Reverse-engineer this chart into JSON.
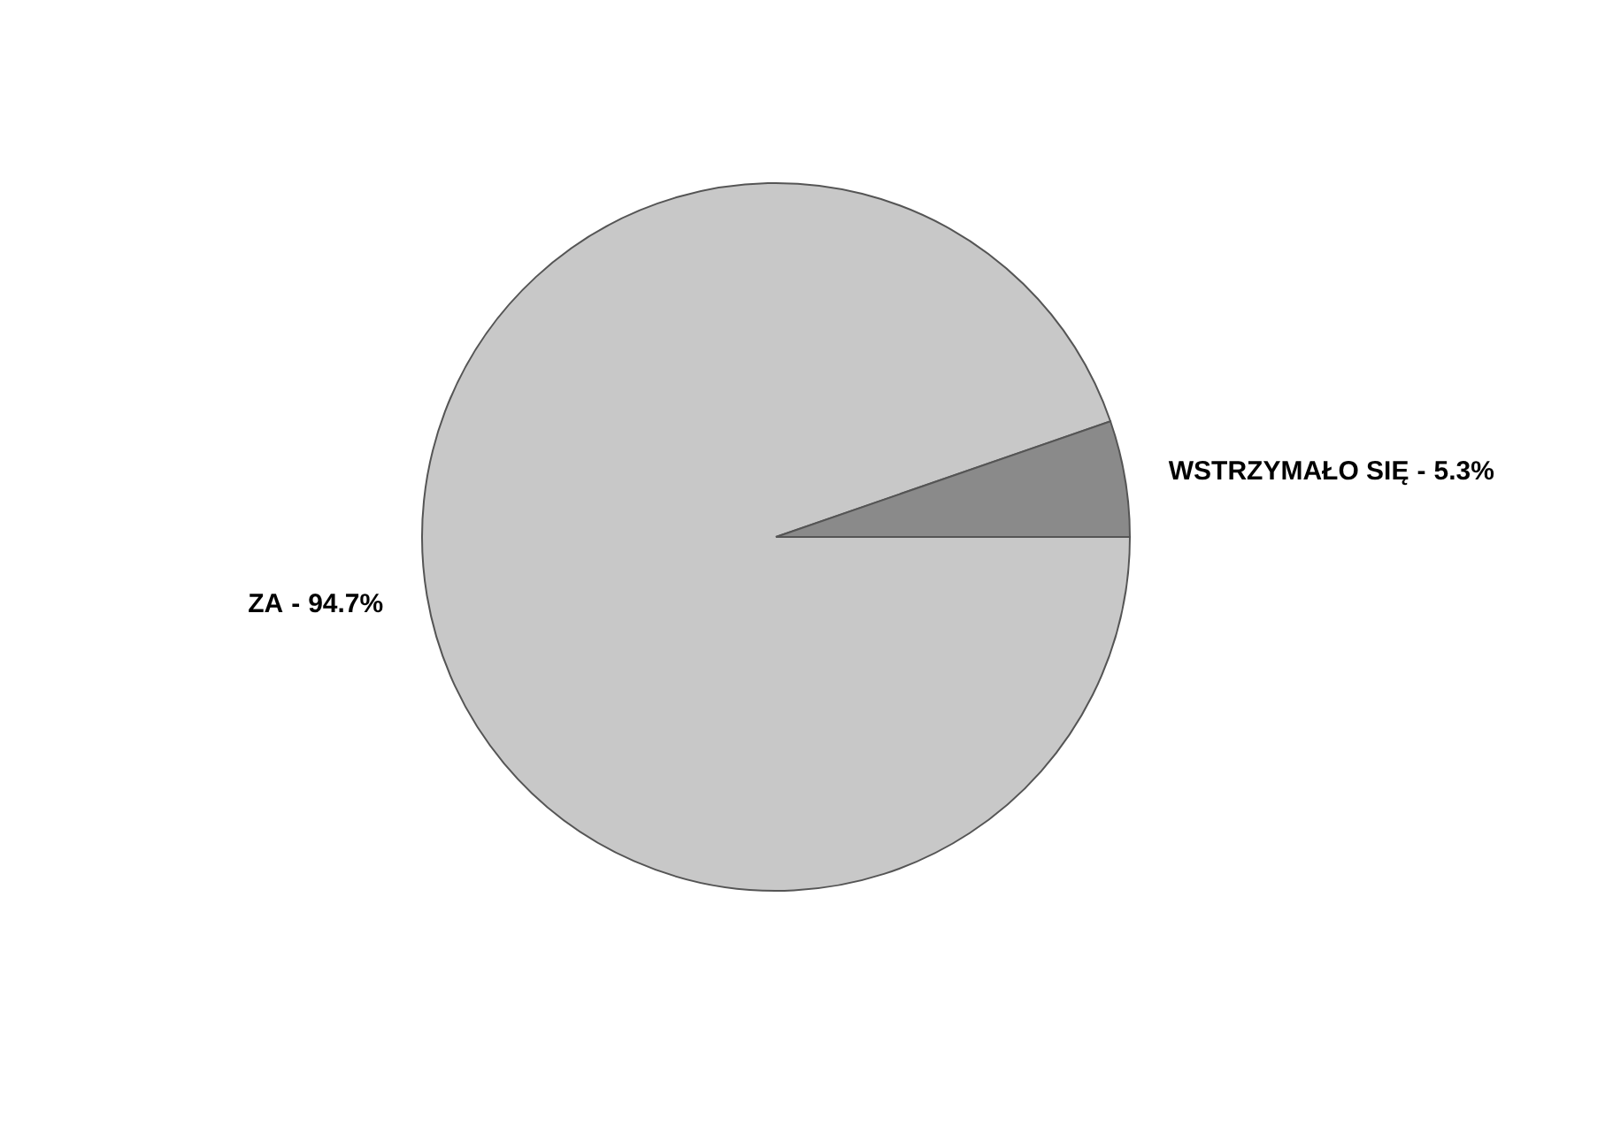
{
  "chart_data": {
    "type": "pie",
    "categories": [
      "ZA",
      "WSTRZYMAŁO SIĘ"
    ],
    "values": [
      94.7,
      5.3
    ],
    "colors": [
      "#c8c8c8",
      "#8a8a8a"
    ],
    "value_labels": [
      "94.7%",
      "5.3%"
    ],
    "annotations": [
      "-",
      "-"
    ],
    "legend": false
  }
}
